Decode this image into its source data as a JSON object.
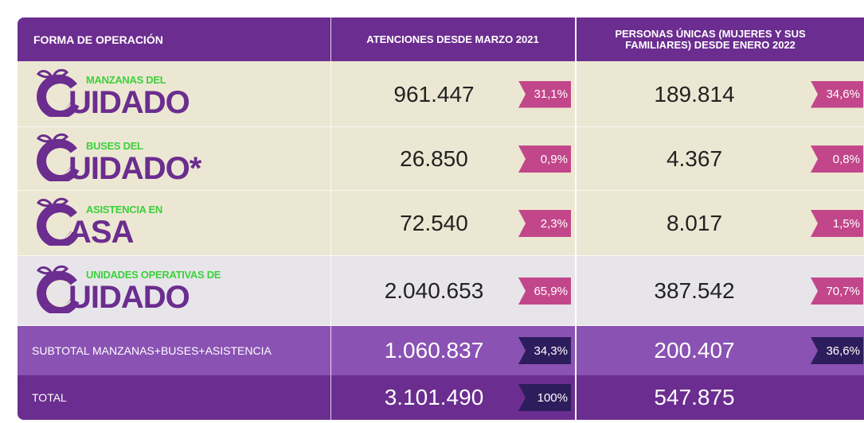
{
  "header": [
    "FORMA DE OPERACIÓN",
    "ATENCIONES DESDE MARZO 2021",
    "PERSONAS ÚNICAS (MUJERES Y SUS FAMILIARES) DESDE ENERO 2022"
  ],
  "rows": [
    {
      "small": "MANZANAS DEL",
      "big": "UIDADO",
      "atenciones": "961.447",
      "atenciones_pct": "31,1%",
      "personas": "189.814",
      "personas_pct": "34,6%"
    },
    {
      "small": "BUSES DEL",
      "big": "UIDADO*",
      "atenciones": "26.850",
      "atenciones_pct": "0,9%",
      "personas": "4.367",
      "personas_pct": "0,8%"
    },
    {
      "small": "ASISTENCIA EN",
      "big": "ASA",
      "atenciones": "72.540",
      "atenciones_pct": "2,3%",
      "personas": "8.017",
      "personas_pct": "1,5%"
    },
    {
      "small": "UNIDADES OPERATIVAS DE",
      "big": "UIDADO",
      "atenciones": "2.040.653",
      "atenciones_pct": "65,9%",
      "personas": "387.542",
      "personas_pct": "70,7%"
    }
  ],
  "subtotal": {
    "label": "SUBTOTAL MANZANAS+BUSES+ASISTENCIA",
    "atenciones": "1.060.837",
    "atenciones_pct": "34,3%",
    "personas": "200.407",
    "personas_pct": "36,6%"
  },
  "total": {
    "label": "TOTAL",
    "atenciones": "3.101.490",
    "atenciones_pct": "100%",
    "personas": "547.875"
  }
}
